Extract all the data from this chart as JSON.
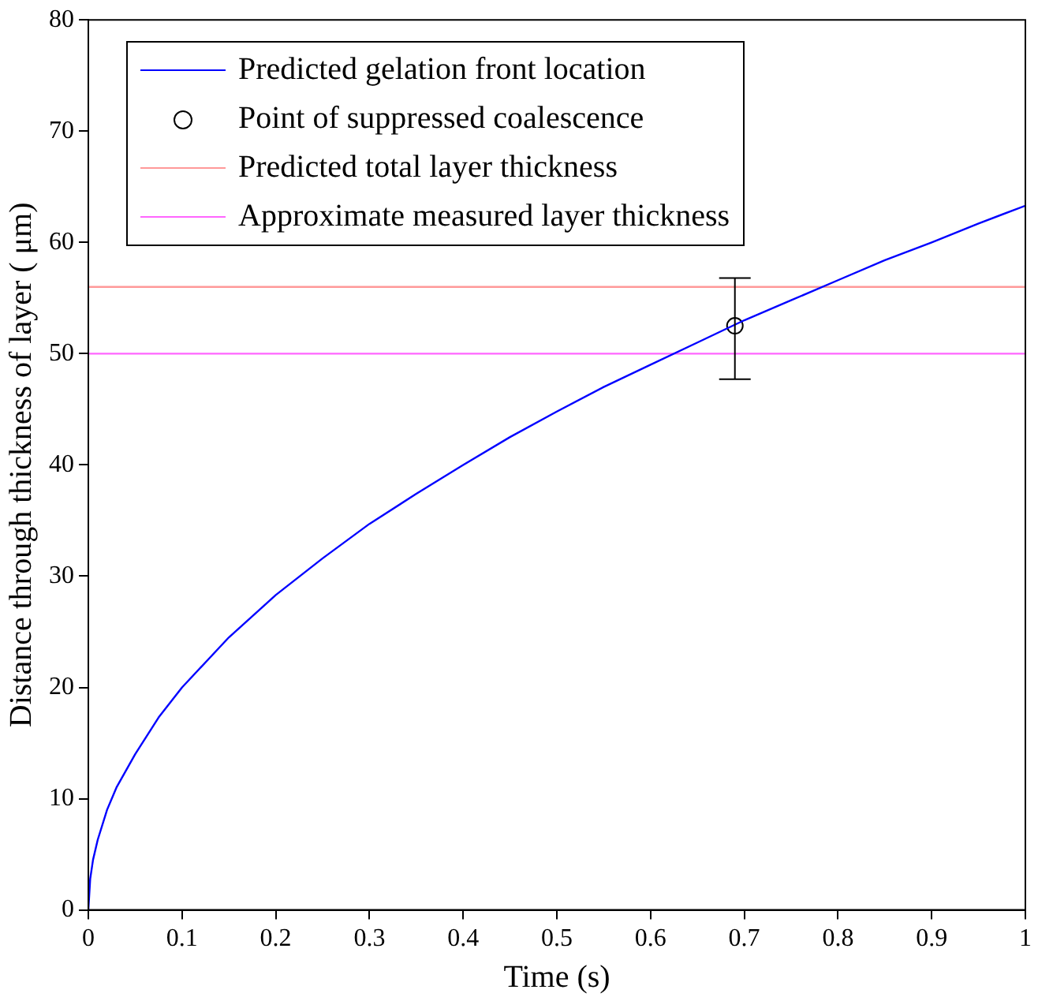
{
  "chart_data": {
    "type": "line",
    "xlabel": "Time (s)",
    "ylabel": "Distance through thickness of layer ( μm)",
    "xlim": [
      0,
      1
    ],
    "xticks": [
      0,
      0.1,
      0.2,
      0.3,
      0.4,
      0.5,
      0.6,
      0.7,
      0.8,
      0.9,
      1
    ],
    "ylim": [
      0,
      80
    ],
    "yticks": [
      0,
      10,
      20,
      30,
      40,
      50,
      60,
      70,
      80
    ],
    "grid": false,
    "legend": "top left",
    "series": [
      {
        "name": "Predicted gelation front location",
        "color": "#0000ff",
        "marker": "none",
        "x": [
          0,
          0.002,
          0.005,
          0.01,
          0.02,
          0.03,
          0.05,
          0.075,
          0.1,
          0.15,
          0.2,
          0.25,
          0.3,
          0.35,
          0.4,
          0.45,
          0.5,
          0.55,
          0.6,
          0.65,
          0.7,
          0.75,
          0.8,
          0.85,
          0.9,
          0.95,
          1
        ],
        "values": [
          0,
          2.8,
          4.5,
          6.3,
          9,
          11,
          14,
          17.3,
          20,
          24.5,
          28.3,
          31.6,
          34.7,
          37.4,
          40,
          42.5,
          44.8,
          47,
          49,
          51,
          53,
          54.8,
          56.6,
          58.4,
          60,
          61.7,
          63.3
        ]
      },
      {
        "name": "Point of suppressed coalescence",
        "type": "scatter",
        "color": "#000000",
        "marker": "circle",
        "x": [
          0.69
        ],
        "values": [
          52.5
        ],
        "errors": [
          [
            47.7,
            56.8
          ]
        ]
      }
    ],
    "ref_lines": [
      {
        "axis": "y",
        "value": 56,
        "label": "Predicted total layer thickness",
        "color": "#ff9999"
      },
      {
        "axis": "y",
        "value": 50,
        "label": "Approximate measured layer thickness",
        "color": "#ff66ff"
      }
    ]
  }
}
